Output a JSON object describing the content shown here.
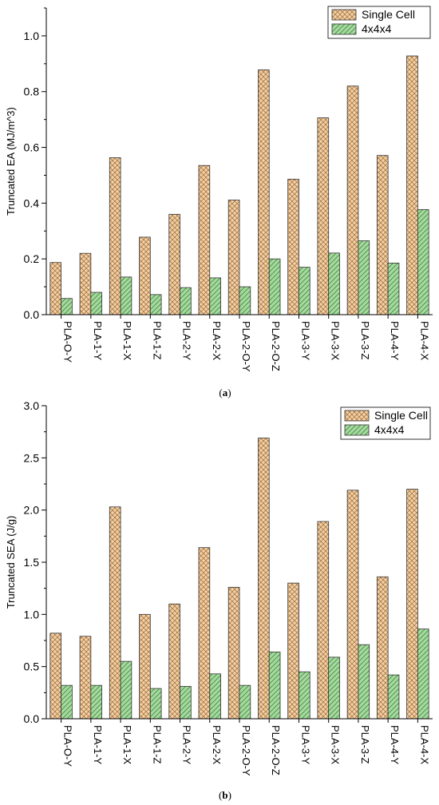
{
  "colors": {
    "single_cell_fill": "#F3CFA2",
    "single_cell_hatch": "#9A6A3C",
    "grid_fill": "#A6D9A0",
    "grid_hatch": "#3F8A3B"
  },
  "chart_data": [
    {
      "type": "bar",
      "panel": "a",
      "caption": "(a)",
      "caption_letter": "a",
      "ylabel": "Truncated EA (MJ/m^3)",
      "xlabel": "",
      "ylim": [
        0,
        1.1
      ],
      "yticks": [
        0.0,
        0.2,
        0.4,
        0.6,
        0.8,
        1.0
      ],
      "ytick_labels": [
        "0.0",
        "0.2",
        "0.4",
        "0.6",
        "0.8",
        "1.0"
      ],
      "categories": [
        "PLA-O-Y",
        "PLA-1-Y",
        "PLA-1-X",
        "PLA-1-Z",
        "PLA-2-Y",
        "PLA-2-X",
        "PLA-2-O-Y",
        "PLA-2-O-Z",
        "PLA-3-Y",
        "PLA-3-X",
        "PLA-3-Z",
        "PLA-4-Y",
        "PLA-4-X"
      ],
      "legend_position": "top-right",
      "series": [
        {
          "name": "Single Cell",
          "values": [
            0.187,
            0.22,
            0.563,
            0.278,
            0.36,
            0.535,
            0.411,
            0.878,
            0.486,
            0.706,
            0.82,
            0.571,
            0.928
          ]
        },
        {
          "name": "4x4x4",
          "values": [
            0.058,
            0.08,
            0.135,
            0.072,
            0.097,
            0.132,
            0.1,
            0.2,
            0.17,
            0.221,
            0.265,
            0.185,
            0.377
          ]
        }
      ]
    },
    {
      "type": "bar",
      "panel": "b",
      "caption": "(b)",
      "caption_letter": "b",
      "ylabel": "Truncated SEA (J/g)",
      "xlabel": "",
      "ylim": [
        0,
        3.0
      ],
      "yticks": [
        0.0,
        0.5,
        1.0,
        1.5,
        2.0,
        2.5,
        3.0
      ],
      "ytick_labels": [
        "0.0",
        "0.5",
        "1.0",
        "1.5",
        "2.0",
        "2.5",
        "3.0"
      ],
      "categories": [
        "PLA-O-Y",
        "PLA-1-Y",
        "PLA-1-X",
        "PLA-1-Z",
        "PLA-2-Y",
        "PLA-2-X",
        "PLA-2-O-Y",
        "PLA-2-O-Z",
        "PLA-3-Y",
        "PLA-3-X",
        "PLA-3-Z",
        "PLA-4-Y",
        "PLA-4-X"
      ],
      "legend_position": "top-right",
      "series": [
        {
          "name": "Single Cell",
          "values": [
            0.82,
            0.79,
            2.03,
            1.0,
            1.1,
            1.64,
            1.26,
            2.69,
            1.3,
            1.89,
            2.19,
            1.36,
            2.2
          ]
        },
        {
          "name": "4x4x4",
          "values": [
            0.32,
            0.32,
            0.55,
            0.29,
            0.31,
            0.43,
            0.32,
            0.64,
            0.45,
            0.59,
            0.71,
            0.42,
            0.86
          ]
        }
      ]
    }
  ]
}
